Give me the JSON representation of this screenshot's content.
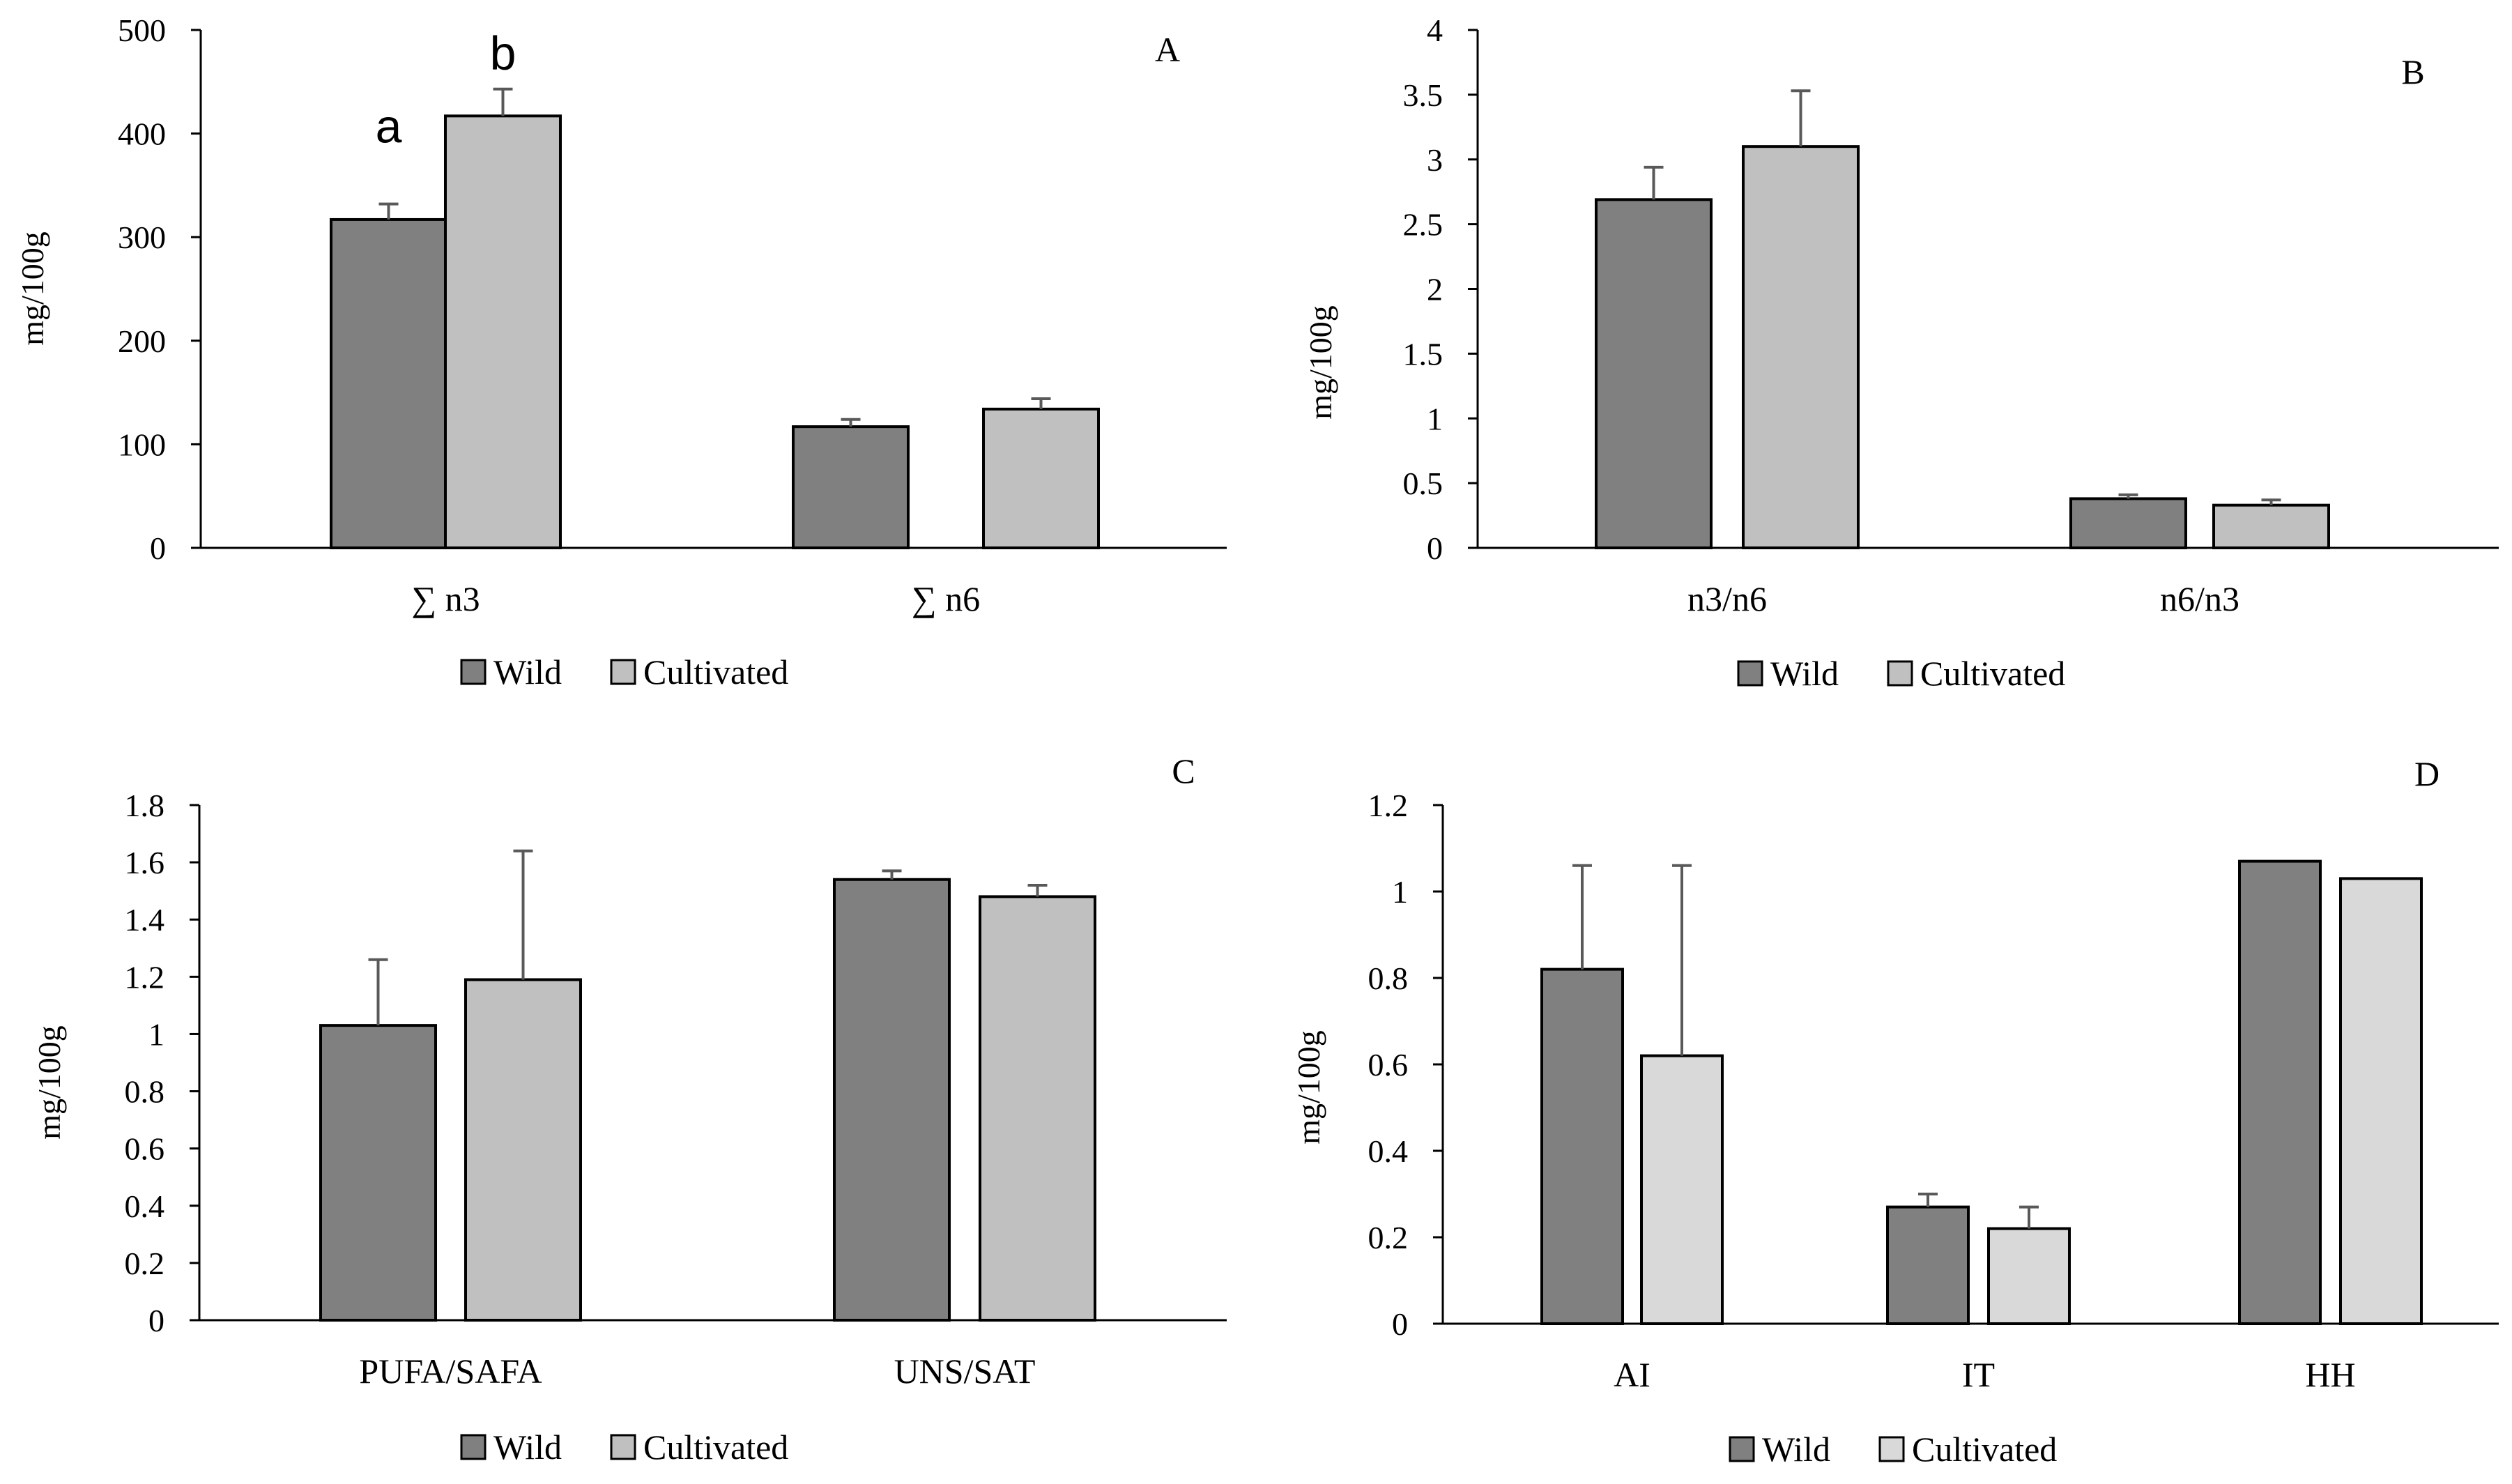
{
  "chart_data": [
    {
      "type": "bar",
      "panel": "A",
      "ylabel": "mg/100g",
      "ylim": [
        0,
        500
      ],
      "yticks": [
        "0",
        "100",
        "200",
        "300",
        "400",
        "500"
      ],
      "ytick_values": [
        0,
        100,
        200,
        300,
        400,
        500
      ],
      "categories": [
        "∑ n3",
        "∑ n6"
      ],
      "series": [
        {
          "name": "Wild",
          "values": [
            317,
            117
          ],
          "errors": [
            15,
            7
          ],
          "color": "#808080"
        },
        {
          "name": "Cultivated",
          "values": [
            417,
            134
          ],
          "errors": [
            26,
            10
          ],
          "color": "#c0c0c0"
        }
      ],
      "annotations": [
        {
          "text": "a",
          "category": 0,
          "series": 0
        },
        {
          "text": "b",
          "category": 0,
          "series": 1
        }
      ],
      "legend": {
        "position": "bottom",
        "labels": [
          "Wild",
          "Cultivated"
        ]
      }
    },
    {
      "type": "bar",
      "panel": "B",
      "ylabel": "mg/100g",
      "ylim": [
        0,
        4
      ],
      "yticks": [
        "0",
        "0.5",
        "1",
        "1.5",
        "2",
        "2.5",
        "3",
        "3.5",
        "4"
      ],
      "ytick_values": [
        0,
        0.5,
        1,
        1.5,
        2,
        2.5,
        3,
        3.5,
        4
      ],
      "categories": [
        "n3/n6",
        "n6/n3"
      ],
      "series": [
        {
          "name": "Wild",
          "values": [
            2.69,
            0.38
          ],
          "errors": [
            0.25,
            0.03
          ],
          "color": "#808080"
        },
        {
          "name": "Cultivated",
          "values": [
            3.1,
            0.33
          ],
          "errors": [
            0.43,
            0.04
          ],
          "color": "#c0c0c0"
        }
      ],
      "annotations": [],
      "legend": {
        "position": "bottom",
        "labels": [
          "Wild",
          "Cultivated"
        ]
      }
    },
    {
      "type": "bar",
      "panel": "C",
      "ylabel": "mg/100g",
      "ylim": [
        0,
        1.8
      ],
      "yticks": [
        "0",
        "0.2",
        "0.4",
        "0.6",
        "0.8",
        "1",
        "1.2",
        "1.4",
        "1.6",
        "1.8"
      ],
      "ytick_values": [
        0,
        0.2,
        0.4,
        0.6,
        0.8,
        1,
        1.2,
        1.4,
        1.6,
        1.8
      ],
      "categories": [
        "PUFA/SAFA",
        "UNS/SAT"
      ],
      "series": [
        {
          "name": "Wild",
          "values": [
            1.03,
            1.54
          ],
          "errors": [
            0.23,
            0.03
          ],
          "color": "#808080"
        },
        {
          "name": "Cultivated",
          "values": [
            1.19,
            1.48
          ],
          "errors": [
            0.45,
            0.04
          ],
          "color": "#c0c0c0"
        }
      ],
      "annotations": [],
      "legend": {
        "position": "bottom",
        "labels": [
          "Wild",
          "Cultivated"
        ]
      }
    },
    {
      "type": "bar",
      "panel": "D",
      "ylabel": "mg/100g",
      "ylim": [
        0,
        1.2
      ],
      "yticks": [
        "0",
        "0.2",
        "0.4",
        "0.6",
        "0.8",
        "1",
        "1.2"
      ],
      "ytick_values": [
        0,
        0.2,
        0.4,
        0.6,
        0.8,
        1,
        1.2
      ],
      "categories": [
        "AI",
        "IT",
        "HH"
      ],
      "series": [
        {
          "name": "Wild",
          "values": [
            0.82,
            0.27,
            1.07
          ],
          "errors": [
            0.24,
            0.03,
            0
          ],
          "color": "#808080"
        },
        {
          "name": "Cultivated",
          "values": [
            0.62,
            0.22,
            1.03
          ],
          "errors": [
            0.44,
            0.05,
            0
          ],
          "color": "#d9d9d9"
        }
      ],
      "annotations": [],
      "legend": {
        "position": "bottom",
        "labels": [
          "Wild",
          "Cultivated"
        ]
      }
    }
  ]
}
